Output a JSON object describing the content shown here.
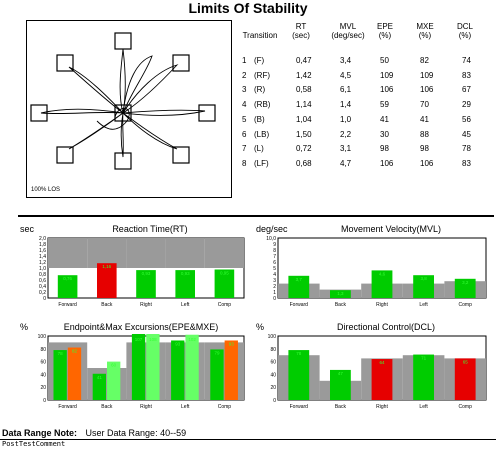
{
  "page_title": "Limits Of Stability",
  "trace": {
    "scale_label": "100% LOS"
  },
  "table": {
    "headers": [
      [
        "Transition",
        ""
      ],
      [
        "RT",
        "(sec)"
      ],
      [
        "MVL",
        "(deg/sec)"
      ],
      [
        "EPE",
        "(%)"
      ],
      [
        "MXE",
        "(%)"
      ],
      [
        "DCL",
        "(%)"
      ]
    ],
    "rows": [
      [
        "1",
        "(F)",
        "0,47",
        "3,4",
        "50",
        "82",
        "74"
      ],
      [
        "2",
        "(RF)",
        "1,42",
        "4,5",
        "109",
        "109",
        "83"
      ],
      [
        "3",
        "(R)",
        "0,58",
        "6,1",
        "106",
        "106",
        "67"
      ],
      [
        "4",
        "(RB)",
        "1,14",
        "1,4",
        "59",
        "70",
        "29"
      ],
      [
        "5",
        "(B)",
        "1,04",
        "1,0",
        "41",
        "41",
        "56"
      ],
      [
        "6",
        "(LB)",
        "1,50",
        "2,2",
        "30",
        "88",
        "45"
      ],
      [
        "7",
        "(L)",
        "0,72",
        "3,1",
        "98",
        "98",
        "78"
      ],
      [
        "8",
        "(LF)",
        "0,68",
        "4,7",
        "106",
        "106",
        "83"
      ]
    ]
  },
  "colors": {
    "green": "#00cc00",
    "red": "#e60000",
    "orange": "#ff6600",
    "norm_gray": "#9a9a9a",
    "light_green": "#66ff66",
    "label_green": "#33ff33"
  },
  "chart_data": [
    {
      "type": "bar",
      "title": "Reaction Time(RT)",
      "unit_label": "sec",
      "categories": [
        "Forward",
        "Back",
        "Right",
        "Left",
        "Comp"
      ],
      "values": [
        0.76,
        1.16,
        0.93,
        0.93,
        0.95
      ],
      "value_labels": [
        "0,76",
        "1,16",
        "0,93",
        "0,93",
        "0,95"
      ],
      "bar_colors": [
        "green",
        "red",
        "green",
        "green",
        "green"
      ],
      "norm_values": [
        2.0,
        2.0,
        2.0,
        2.0,
        2.0
      ],
      "norm_from": 1.0,
      "ylim": [
        0,
        2.0
      ],
      "yticks": [
        "0",
        "0,2",
        "0,4",
        "0,6",
        "0,8",
        "1,0",
        "1,2",
        "1,4",
        "1,6",
        "1,8",
        "2,0"
      ]
    },
    {
      "type": "bar",
      "title": "Movement Velocity(MVL)",
      "unit_label": "deg/sec",
      "categories": [
        "Forward",
        "Back",
        "Right",
        "Left",
        "Comp"
      ],
      "values": [
        3.7,
        1.3,
        4.6,
        3.8,
        3.2
      ],
      "value_labels": [
        "3,7",
        "1,3",
        "4,6",
        "3,8",
        "3,2"
      ],
      "bar_colors": [
        "green",
        "green",
        "green",
        "green",
        "green"
      ],
      "norm_values": [
        2.4,
        1.4,
        2.4,
        2.4,
        2.8
      ],
      "ylim": [
        0,
        10.0
      ],
      "yticks": [
        "0",
        "1",
        "2",
        "3",
        "4",
        "5",
        "6",
        "7",
        "8",
        "9",
        "10,0"
      ]
    },
    {
      "type": "bar",
      "title": "Endpoint&Max Excursions(EPE&MXE)",
      "unit_label": "%",
      "categories": [
        "Forward",
        "Back",
        "Right",
        "Left",
        "Comp"
      ],
      "epe_values": [
        78,
        41,
        107,
        93,
        79
      ],
      "epe_labels": [
        "78",
        "41",
        "107",
        "93",
        "79"
      ],
      "mxe_values": [
        82,
        60,
        108,
        102,
        93
      ],
      "mxe_labels": [
        "82",
        "60",
        "108",
        "102",
        "93"
      ],
      "epe_colors": [
        "green",
        "green",
        "green",
        "green",
        "green"
      ],
      "mxe_colors": [
        "orange",
        "light_green",
        "light_green",
        "light_green",
        "orange"
      ],
      "norm_values": [
        90,
        50,
        90,
        90,
        90
      ],
      "ylim": [
        0,
        100
      ],
      "yticks": [
        "0",
        "20",
        "40",
        "60",
        "80",
        "100"
      ]
    },
    {
      "type": "bar",
      "title": "Directional Control(DCL)",
      "unit_label": "%",
      "categories": [
        "Forward",
        "Back",
        "Right",
        "Left",
        "Comp"
      ],
      "values": [
        78,
        47,
        64,
        71,
        65
      ],
      "value_labels": [
        "78",
        "47",
        "64",
        "71",
        "65"
      ],
      "bar_colors": [
        "green",
        "green",
        "red",
        "green",
        "red"
      ],
      "norm_values": [
        70,
        30,
        65,
        70,
        65
      ],
      "ylim": [
        0,
        100
      ],
      "yticks": [
        "0",
        "20",
        "40",
        "60",
        "80",
        "100"
      ]
    }
  ],
  "note": {
    "label": "Data Range Note:",
    "text": "User Data Range: 40--59"
  },
  "comment": "PostTestComment"
}
